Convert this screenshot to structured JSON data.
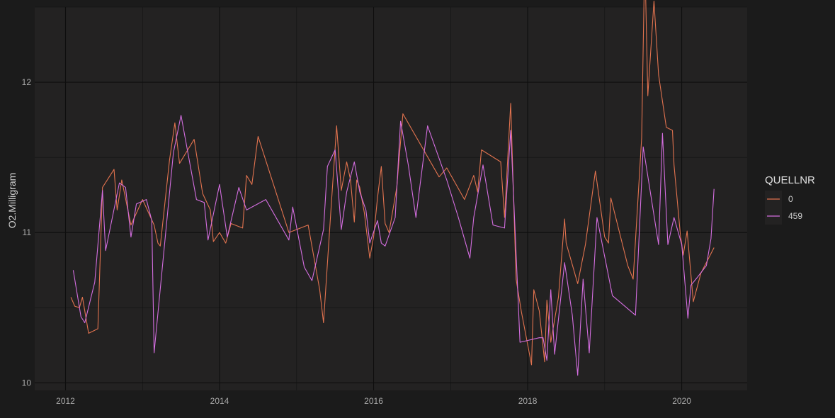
{
  "chart_data": {
    "type": "line",
    "ylabel": "O2.Milligram",
    "xlabel": "",
    "xlim": [
      2011.6,
      2020.85
    ],
    "ylim": [
      9.95,
      12.5
    ],
    "x_ticks": [
      "2012",
      "2014",
      "2016",
      "2018",
      "2020"
    ],
    "x_tick_values": [
      2012,
      2014,
      2016,
      2018,
      2020
    ],
    "y_ticks": [
      "10",
      "11",
      "12"
    ],
    "y_tick_values": [
      10,
      11,
      12
    ],
    "grid": true,
    "legend": {
      "title": "QUELLNR",
      "position": "right"
    },
    "series": [
      {
        "name": "0",
        "color": "#e2734f",
        "points": [
          [
            2012.07,
            10.57
          ],
          [
            2012.12,
            10.51
          ],
          [
            2012.18,
            10.5
          ],
          [
            2012.22,
            10.57
          ],
          [
            2012.3,
            10.33
          ],
          [
            2012.42,
            10.36
          ],
          [
            2012.48,
            11.3
          ],
          [
            2012.63,
            11.42
          ],
          [
            2012.67,
            11.15
          ],
          [
            2012.73,
            11.35
          ],
          [
            2012.85,
            11.05
          ],
          [
            2013.0,
            11.22
          ],
          [
            2013.15,
            11.05
          ],
          [
            2013.2,
            10.93
          ],
          [
            2013.23,
            10.91
          ],
          [
            2013.35,
            11.48
          ],
          [
            2013.42,
            11.73
          ],
          [
            2013.48,
            11.46
          ],
          [
            2013.67,
            11.62
          ],
          [
            2013.78,
            11.26
          ],
          [
            2013.88,
            11.15
          ],
          [
            2013.92,
            10.94
          ],
          [
            2014.0,
            11.0
          ],
          [
            2014.08,
            10.93
          ],
          [
            2014.15,
            11.06
          ],
          [
            2014.3,
            11.03
          ],
          [
            2014.35,
            11.38
          ],
          [
            2014.42,
            11.32
          ],
          [
            2014.5,
            11.64
          ],
          [
            2014.9,
            11.0
          ],
          [
            2015.15,
            11.05
          ],
          [
            2015.3,
            10.62
          ],
          [
            2015.35,
            10.4
          ],
          [
            2015.45,
            11.18
          ],
          [
            2015.52,
            11.71
          ],
          [
            2015.58,
            11.28
          ],
          [
            2015.65,
            11.47
          ],
          [
            2015.7,
            11.35
          ],
          [
            2015.75,
            11.07
          ],
          [
            2015.78,
            11.35
          ],
          [
            2015.82,
            11.3
          ],
          [
            2015.88,
            11.13
          ],
          [
            2015.95,
            10.83
          ],
          [
            2016.0,
            10.97
          ],
          [
            2016.05,
            11.23
          ],
          [
            2016.1,
            11.44
          ],
          [
            2016.15,
            11.06
          ],
          [
            2016.2,
            11.0
          ],
          [
            2016.3,
            11.3
          ],
          [
            2016.38,
            11.79
          ],
          [
            2016.85,
            11.37
          ],
          [
            2016.95,
            11.43
          ],
          [
            2017.18,
            11.22
          ],
          [
            2017.3,
            11.38
          ],
          [
            2017.35,
            11.27
          ],
          [
            2017.4,
            11.55
          ],
          [
            2017.65,
            11.47
          ],
          [
            2017.7,
            11.1
          ],
          [
            2017.78,
            11.86
          ],
          [
            2017.85,
            10.69
          ],
          [
            2017.92,
            10.47
          ],
          [
            2018.05,
            10.12
          ],
          [
            2018.08,
            10.62
          ],
          [
            2018.15,
            10.48
          ],
          [
            2018.22,
            10.14
          ],
          [
            2018.25,
            10.55
          ],
          [
            2018.3,
            10.27
          ],
          [
            2018.4,
            10.57
          ],
          [
            2018.48,
            11.09
          ],
          [
            2018.5,
            10.93
          ],
          [
            2018.65,
            10.66
          ],
          [
            2018.75,
            10.92
          ],
          [
            2018.88,
            11.41
          ],
          [
            2019.0,
            10.97
          ],
          [
            2019.05,
            10.93
          ],
          [
            2019.08,
            11.23
          ],
          [
            2019.3,
            10.78
          ],
          [
            2019.37,
            10.69
          ],
          [
            2019.48,
            11.63
          ],
          [
            2019.52,
            12.85
          ],
          [
            2019.56,
            11.91
          ],
          [
            2019.64,
            12.54
          ],
          [
            2019.7,
            12.05
          ],
          [
            2019.8,
            11.7
          ],
          [
            2019.88,
            11.68
          ],
          [
            2019.9,
            11.45
          ],
          [
            2019.98,
            11.0
          ],
          [
            2020.02,
            10.85
          ],
          [
            2020.07,
            11.01
          ],
          [
            2020.15,
            10.54
          ],
          [
            2020.25,
            10.73
          ],
          [
            2020.42,
            10.9
          ]
        ]
      },
      {
        "name": "459",
        "color": "#d46ee0",
        "points": [
          [
            2012.1,
            10.75
          ],
          [
            2012.2,
            10.44
          ],
          [
            2012.25,
            10.4
          ],
          [
            2012.38,
            10.67
          ],
          [
            2012.48,
            11.28
          ],
          [
            2012.52,
            10.88
          ],
          [
            2012.7,
            11.33
          ],
          [
            2012.78,
            11.3
          ],
          [
            2012.85,
            10.97
          ],
          [
            2012.92,
            11.19
          ],
          [
            2013.05,
            11.22
          ],
          [
            2013.12,
            11.08
          ],
          [
            2013.15,
            10.2
          ],
          [
            2013.4,
            11.53
          ],
          [
            2013.5,
            11.78
          ],
          [
            2013.7,
            11.22
          ],
          [
            2013.8,
            11.2
          ],
          [
            2013.85,
            10.95
          ],
          [
            2014.0,
            11.32
          ],
          [
            2014.1,
            10.97
          ],
          [
            2014.25,
            11.3
          ],
          [
            2014.35,
            11.15
          ],
          [
            2014.6,
            11.22
          ],
          [
            2014.9,
            10.95
          ],
          [
            2014.95,
            11.17
          ],
          [
            2015.1,
            10.77
          ],
          [
            2015.2,
            10.68
          ],
          [
            2015.35,
            11.02
          ],
          [
            2015.4,
            11.44
          ],
          [
            2015.5,
            11.55
          ],
          [
            2015.58,
            11.02
          ],
          [
            2015.65,
            11.27
          ],
          [
            2015.75,
            11.47
          ],
          [
            2015.82,
            11.27
          ],
          [
            2015.9,
            11.15
          ],
          [
            2015.95,
            10.93
          ],
          [
            2016.05,
            11.08
          ],
          [
            2016.1,
            10.93
          ],
          [
            2016.15,
            10.91
          ],
          [
            2016.28,
            11.1
          ],
          [
            2016.35,
            11.74
          ],
          [
            2016.45,
            11.45
          ],
          [
            2016.55,
            11.1
          ],
          [
            2016.7,
            11.71
          ],
          [
            2016.95,
            11.35
          ],
          [
            2017.1,
            11.1
          ],
          [
            2017.2,
            10.92
          ],
          [
            2017.25,
            10.83
          ],
          [
            2017.3,
            11.1
          ],
          [
            2017.42,
            11.45
          ],
          [
            2017.55,
            11.05
          ],
          [
            2017.7,
            11.03
          ],
          [
            2017.78,
            11.68
          ],
          [
            2017.9,
            10.27
          ],
          [
            2018.15,
            10.3
          ],
          [
            2018.2,
            10.3
          ],
          [
            2018.25,
            10.15
          ],
          [
            2018.3,
            10.62
          ],
          [
            2018.35,
            10.19
          ],
          [
            2018.48,
            10.8
          ],
          [
            2018.58,
            10.45
          ],
          [
            2018.65,
            10.05
          ],
          [
            2018.72,
            10.69
          ],
          [
            2018.8,
            10.2
          ],
          [
            2018.9,
            11.1
          ],
          [
            2019.1,
            10.58
          ],
          [
            2019.4,
            10.45
          ],
          [
            2019.5,
            11.57
          ],
          [
            2019.7,
            10.92
          ],
          [
            2019.75,
            11.66
          ],
          [
            2019.82,
            10.92
          ],
          [
            2019.9,
            11.1
          ],
          [
            2020.0,
            10.92
          ],
          [
            2020.08,
            10.43
          ],
          [
            2020.12,
            10.65
          ],
          [
            2020.2,
            10.7
          ],
          [
            2020.32,
            10.78
          ],
          [
            2020.38,
            10.96
          ],
          [
            2020.42,
            11.29
          ]
        ]
      }
    ]
  }
}
